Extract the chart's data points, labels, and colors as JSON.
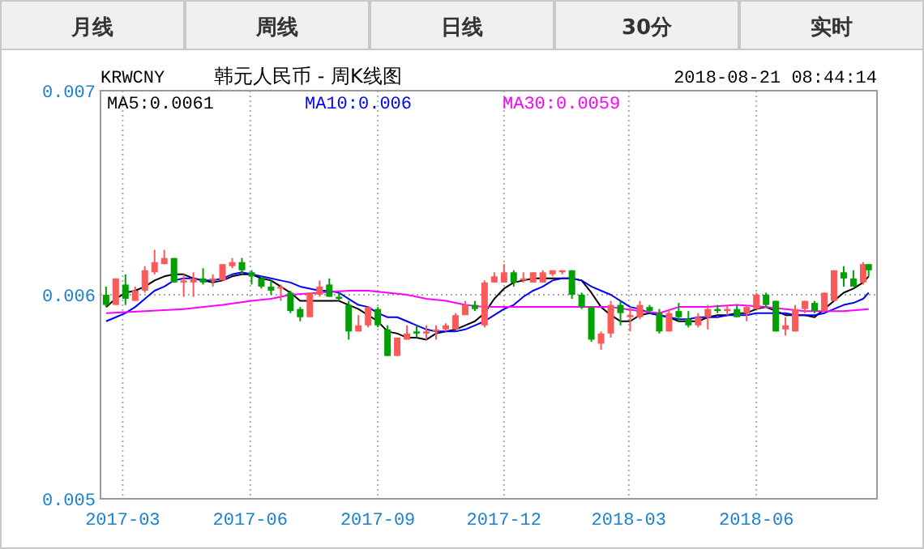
{
  "chart_data": {
    "type": "candlestick",
    "title": "韩元人民币 - 周K线图",
    "subtitle": "KRWCNY",
    "annotations": [
      "月线",
      "周线",
      "日线",
      "30分",
      "实时",
      "2018-08-21 08:44:14"
    ],
    "x": [
      "2017-02-17",
      "2017-02-24",
      "2017-03-03",
      "2017-03-10",
      "2017-03-17",
      "2017-03-24",
      "2017-03-31",
      "2017-04-07",
      "2017-04-14",
      "2017-04-21",
      "2017-04-28",
      "2017-05-05",
      "2017-05-12",
      "2017-05-19",
      "2017-05-26",
      "2017-06-02",
      "2017-06-09",
      "2017-06-16",
      "2017-06-23",
      "2017-06-30",
      "2017-07-07",
      "2017-07-14",
      "2017-07-21",
      "2017-07-28",
      "2017-08-04",
      "2017-08-11",
      "2017-08-18",
      "2017-08-25",
      "2017-09-01",
      "2017-09-08",
      "2017-09-15",
      "2017-09-22",
      "2017-09-29",
      "2017-10-06",
      "2017-10-13",
      "2017-10-20",
      "2017-10-27",
      "2017-11-03",
      "2017-11-10",
      "2017-11-17",
      "2017-11-24",
      "2017-12-01",
      "2017-12-08",
      "2017-12-15",
      "2017-12-22",
      "2017-12-29",
      "2018-01-05",
      "2018-01-12",
      "2018-01-19",
      "2018-01-26",
      "2018-02-02",
      "2018-02-09",
      "2018-02-16",
      "2018-02-23",
      "2018-03-02",
      "2018-03-09",
      "2018-03-16",
      "2018-03-23",
      "2018-03-30",
      "2018-04-06",
      "2018-04-13",
      "2018-04-20",
      "2018-04-27",
      "2018-05-04",
      "2018-05-11",
      "2018-05-18",
      "2018-05-25",
      "2018-06-01",
      "2018-06-08",
      "2018-06-15",
      "2018-06-22",
      "2018-06-29",
      "2018-07-06",
      "2018-07-13",
      "2018-07-20",
      "2018-07-27",
      "2018-08-03",
      "2018-08-10",
      "2018-08-17",
      "2018-08-21"
    ],
    "ohlc": [
      [
        0.006,
        0.00604,
        0.00594,
        0.00595
      ],
      [
        0.00595,
        0.00608,
        0.00595,
        0.00608
      ],
      [
        0.00605,
        0.0061,
        0.00595,
        0.00598
      ],
      [
        0.00597,
        0.00604,
        0.00597,
        0.00602
      ],
      [
        0.00602,
        0.00614,
        0.00601,
        0.00612
      ],
      [
        0.00611,
        0.00622,
        0.0061,
        0.00616
      ],
      [
        0.00615,
        0.00622,
        0.00615,
        0.00618
      ],
      [
        0.00618,
        0.00618,
        0.00606,
        0.00606
      ],
      [
        0.00606,
        0.0061,
        0.00599,
        0.00607
      ],
      [
        0.00606,
        0.00611,
        0.00599,
        0.00608
      ],
      [
        0.00608,
        0.00613,
        0.00605,
        0.00606
      ],
      [
        0.00607,
        0.0061,
        0.00604,
        0.00608
      ],
      [
        0.00607,
        0.00615,
        0.00607,
        0.00615
      ],
      [
        0.00614,
        0.00618,
        0.00613,
        0.00616
      ],
      [
        0.00616,
        0.00618,
        0.0061,
        0.00612
      ],
      [
        0.00611,
        0.00612,
        0.00605,
        0.00609
      ],
      [
        0.00608,
        0.00609,
        0.00603,
        0.00604
      ],
      [
        0.00604,
        0.00607,
        0.006,
        0.00602
      ],
      [
        0.00603,
        0.00605,
        0.00597,
        0.00604
      ],
      [
        0.00601,
        0.00602,
        0.00591,
        0.00592
      ],
      [
        0.00593,
        0.00594,
        0.00587,
        0.00589
      ],
      [
        0.00589,
        0.00601,
        0.00589,
        0.00601
      ],
      [
        0.006,
        0.00607,
        0.00599,
        0.00604
      ],
      [
        0.00605,
        0.00608,
        0.00599,
        0.00599
      ],
      [
        0.00599,
        0.00601,
        0.00597,
        0.00598
      ],
      [
        0.00595,
        0.00597,
        0.00578,
        0.00582
      ],
      [
        0.00582,
        0.0059,
        0.00582,
        0.00585
      ],
      [
        0.00585,
        0.00594,
        0.00584,
        0.00594
      ],
      [
        0.00593,
        0.00594,
        0.00584,
        0.00585
      ],
      [
        0.00583,
        0.00585,
        0.0057,
        0.0057
      ],
      [
        0.0057,
        0.00579,
        0.0057,
        0.00579
      ],
      [
        0.00578,
        0.00585,
        0.00578,
        0.00581
      ],
      [
        0.00582,
        0.00585,
        0.00579,
        0.00581
      ],
      [
        0.00581,
        0.00585,
        0.00578,
        0.00582
      ],
      [
        0.00582,
        0.00585,
        0.00578,
        0.00583
      ],
      [
        0.00583,
        0.00586,
        0.00582,
        0.00585
      ],
      [
        0.00583,
        0.00591,
        0.00583,
        0.0059
      ],
      [
        0.0059,
        0.00597,
        0.0059,
        0.00595
      ],
      [
        0.00595,
        0.00597,
        0.00592,
        0.00593
      ],
      [
        0.00585,
        0.00607,
        0.00584,
        0.00606
      ],
      [
        0.00606,
        0.00611,
        0.00606,
        0.00609
      ],
      [
        0.00606,
        0.00615,
        0.00606,
        0.00611
      ],
      [
        0.00611,
        0.00612,
        0.00604,
        0.00606
      ],
      [
        0.00607,
        0.00611,
        0.00606,
        0.00608
      ],
      [
        0.00606,
        0.00611,
        0.00606,
        0.00611
      ],
      [
        0.00606,
        0.00612,
        0.00606,
        0.00611
      ],
      [
        0.0061,
        0.00612,
        0.00609,
        0.00612
      ],
      [
        0.00611,
        0.00612,
        0.0061,
        0.00612
      ],
      [
        0.00612,
        0.00612,
        0.00598,
        0.006
      ],
      [
        0.006,
        0.00601,
        0.00593,
        0.00594
      ],
      [
        0.00594,
        0.00594,
        0.00577,
        0.00578
      ],
      [
        0.00576,
        0.00582,
        0.00573,
        0.00581
      ],
      [
        0.00581,
        0.00597,
        0.00579,
        0.00595
      ],
      [
        0.00595,
        0.00597,
        0.00585,
        0.00591
      ],
      [
        0.00589,
        0.00594,
        0.00582,
        0.0059
      ],
      [
        0.00589,
        0.00597,
        0.00588,
        0.00595
      ],
      [
        0.00594,
        0.00595,
        0.00591,
        0.00592
      ],
      [
        0.00591,
        0.00593,
        0.00581,
        0.00582
      ],
      [
        0.00582,
        0.00593,
        0.00582,
        0.00591
      ],
      [
        0.00592,
        0.00596,
        0.00587,
        0.00589
      ],
      [
        0.00588,
        0.00592,
        0.00584,
        0.00585
      ],
      [
        0.00585,
        0.00591,
        0.00584,
        0.00589
      ],
      [
        0.00589,
        0.00595,
        0.00583,
        0.00593
      ],
      [
        0.00593,
        0.00595,
        0.00591,
        0.00592
      ],
      [
        0.00592,
        0.00595,
        0.0059,
        0.00593
      ],
      [
        0.00593,
        0.00595,
        0.00589,
        0.00589
      ],
      [
        0.00591,
        0.00595,
        0.00587,
        0.00594
      ],
      [
        0.00593,
        0.00601,
        0.00593,
        0.006
      ],
      [
        0.006,
        0.00601,
        0.00594,
        0.00595
      ],
      [
        0.00597,
        0.00597,
        0.00582,
        0.00582
      ],
      [
        0.00583,
        0.00589,
        0.0058,
        0.00585
      ],
      [
        0.00582,
        0.00595,
        0.00582,
        0.00593
      ],
      [
        0.00593,
        0.00597,
        0.00591,
        0.00597
      ],
      [
        0.00596,
        0.00597,
        0.00591,
        0.00592
      ],
      [
        0.00592,
        0.00601,
        0.00592,
        0.00601
      ],
      [
        0.00597,
        0.00612,
        0.00597,
        0.00612
      ],
      [
        0.00611,
        0.00614,
        0.00604,
        0.00608
      ],
      [
        0.00608,
        0.00612,
        0.00604,
        0.00604
      ],
      [
        0.00606,
        0.00616,
        0.00605,
        0.00615
      ],
      [
        0.00615,
        0.00615,
        0.00609,
        0.00612
      ]
    ],
    "colors": [
      "#00a000",
      "#fa5a5a",
      "#00a000",
      "#fa5a5a",
      "#fa5a5a",
      "#fa5a5a",
      "#fa5a5a",
      "#00a000",
      "#fa5a5a",
      "#fa5a5a",
      "#00a000",
      "#fa5a5a",
      "#fa5a5a",
      "#fa5a5a",
      "#00a000",
      "#00a000",
      "#00a000",
      "#00a000",
      "#fa5a5a",
      "#00a000",
      "#00a000",
      "#fa5a5a",
      "#fa5a5a",
      "#00a000",
      "#00a000",
      "#00a000",
      "#fa5a5a",
      "#fa5a5a",
      "#00a000",
      "#00a000",
      "#fa5a5a",
      "#fa5a5a",
      "#00a000",
      "#fa5a5a",
      "#fa5a5a",
      "#fa5a5a",
      "#fa5a5a",
      "#fa5a5a",
      "#00a000",
      "#fa5a5a",
      "#fa5a5a",
      "#fa5a5a",
      "#00a000",
      "#fa5a5a",
      "#fa5a5a",
      "#fa5a5a",
      "#fa5a5a",
      "#fa5a5a",
      "#00a000",
      "#00a000",
      "#00a000",
      "#fa5a5a",
      "#fa5a5a",
      "#00a000",
      "#fa5a5a",
      "#fa5a5a",
      "#00a000",
      "#00a000",
      "#fa5a5a",
      "#00a000",
      "#00a000",
      "#fa5a5a",
      "#fa5a5a",
      "#00a000",
      "#fa5a5a",
      "#00a000",
      "#fa5a5a",
      "#fa5a5a",
      "#00a000",
      "#00a000",
      "#fa5a5a",
      "#fa5a5a",
      "#fa5a5a",
      "#00a000",
      "#fa5a5a",
      "#fa5a5a",
      "#00a000",
      "#00a000",
      "#fa5a5a",
      "#00a000"
    ],
    "series": [
      {
        "name": "MA5:0.0061",
        "color": "#000000",
        "type": "line",
        "values": [
          0.00594,
          0.00598,
          0.00601,
          0.00602,
          0.00604,
          0.00607,
          0.00609,
          0.0061,
          0.0061,
          0.00608,
          0.00607,
          0.00606,
          0.00607,
          0.00609,
          0.0061,
          0.0061,
          0.00608,
          0.00607,
          0.00604,
          0.00601,
          0.00597,
          0.00597,
          0.00597,
          0.00597,
          0.00597,
          0.00595,
          0.00593,
          0.0059,
          0.00587,
          0.00582,
          0.00581,
          0.00579,
          0.00579,
          0.00578,
          0.00581,
          0.00582,
          0.00583,
          0.00585,
          0.00587,
          0.00591,
          0.00598,
          0.00603,
          0.00606,
          0.00607,
          0.00608,
          0.00608,
          0.00608,
          0.00608,
          0.00608,
          0.00607,
          0.00601,
          0.00594,
          0.0059,
          0.00587,
          0.00587,
          0.0059,
          0.00591,
          0.0059,
          0.00589,
          0.00587,
          0.00587,
          0.00587,
          0.00589,
          0.0059,
          0.0059,
          0.00591,
          0.00591,
          0.00593,
          0.00594,
          0.00592,
          0.0059,
          0.0059,
          0.0059,
          0.00589,
          0.00593,
          0.00597,
          0.00601,
          0.00603,
          0.00606,
          0.00609
        ]
      },
      {
        "name": "MA10:0.006",
        "color": "#0000ff",
        "type": "line",
        "values": [
          0.00587,
          0.00589,
          0.00591,
          0.00594,
          0.00598,
          0.00602,
          0.00604,
          0.00607,
          0.00608,
          0.00608,
          0.00607,
          0.00607,
          0.00608,
          0.0061,
          0.00611,
          0.0061,
          0.00609,
          0.00608,
          0.00607,
          0.00606,
          0.00604,
          0.00603,
          0.00602,
          0.00602,
          0.00601,
          0.00598,
          0.00595,
          0.00594,
          0.00591,
          0.00589,
          0.00589,
          0.00587,
          0.00585,
          0.00583,
          0.00582,
          0.00582,
          0.00582,
          0.00583,
          0.00585,
          0.00587,
          0.0059,
          0.00593,
          0.00595,
          0.00599,
          0.00602,
          0.00604,
          0.00607,
          0.00608,
          0.00608,
          0.00607,
          0.00604,
          0.00602,
          0.006,
          0.00597,
          0.00594,
          0.00593,
          0.00591,
          0.0059,
          0.00589,
          0.00588,
          0.00588,
          0.00589,
          0.00589,
          0.00589,
          0.0059,
          0.0059,
          0.0059,
          0.00591,
          0.00591,
          0.00591,
          0.00591,
          0.0059,
          0.0059,
          0.0059,
          0.00591,
          0.00593,
          0.00595,
          0.00596,
          0.00598,
          0.00601
        ]
      },
      {
        "name": "MA30:0.0059",
        "color": "#ff00ff",
        "type": "line",
        "x": [
          "2017-02-17",
          "2017-03-17",
          "2017-04-14",
          "2017-05-12",
          "2017-06-02",
          "2017-06-16",
          "2017-06-30",
          "2017-07-21",
          "2017-08-11",
          "2017-08-25",
          "2017-09-08",
          "2017-09-22",
          "2017-10-06",
          "2017-10-20",
          "2017-11-03",
          "2017-11-17",
          "2017-12-01",
          "2017-12-22",
          "2018-01-12",
          "2018-01-26",
          "2018-02-16",
          "2018-03-09",
          "2018-03-23",
          "2018-04-06",
          "2018-04-27",
          "2018-05-18",
          "2018-06-08",
          "2018-06-22",
          "2018-07-06",
          "2018-07-20",
          "2018-08-03",
          "2018-08-21"
        ],
        "values": [
          0.00591,
          0.00592,
          0.00593,
          0.00595,
          0.00597,
          0.00598,
          0.006,
          0.00601,
          0.00602,
          0.00602,
          0.00601,
          0.006,
          0.00598,
          0.00597,
          0.00595,
          0.00594,
          0.00594,
          0.00594,
          0.00594,
          0.00594,
          0.00594,
          0.00592,
          0.00591,
          0.00594,
          0.00594,
          0.00595,
          0.00594,
          0.00593,
          0.00592,
          0.00592,
          0.00592,
          0.00593
        ]
      }
    ],
    "xlim": [
      "2017-02-13",
      "2018-08-27"
    ],
    "xticks": [
      "2017-03",
      "2017-06",
      "2017-09",
      "2017-12",
      "2018-03",
      "2018-06"
    ],
    "ylim": [
      0.005,
      0.007
    ],
    "yticks": [
      0.005,
      0.006,
      0.007
    ],
    "grid": true,
    "legend": "top"
  }
}
